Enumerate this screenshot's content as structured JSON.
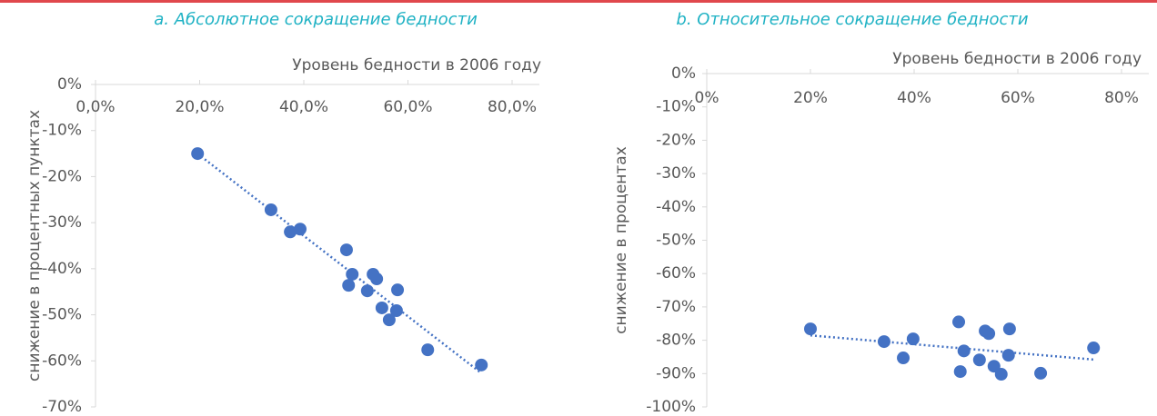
{
  "chart_data": [
    {
      "type": "scatter",
      "title": "a. Абсолютное сокращение бедности",
      "x_label": "Уровень бедности в 2006 году",
      "y_label": "снижение в процентных пунктах",
      "color": "#4472c4",
      "trendline": true,
      "x": [
        19.6,
        33.7,
        37.4,
        39.3,
        48.2,
        48.6,
        49.3,
        53.3,
        54.0,
        52.2,
        58.0,
        55.0,
        57.8,
        56.4,
        63.8,
        74.1
      ],
      "values": [
        -15.0,
        -27.2,
        -32.0,
        -31.4,
        -35.9,
        -43.6,
        -41.2,
        -41.2,
        -42.2,
        -44.8,
        -44.6,
        -48.5,
        -49.1,
        -51.1,
        -57.6,
        -60.9
      ],
      "xlim": [
        0,
        80
      ],
      "ylim": [
        -70,
        0
      ],
      "xticks": [
        {
          "value": 0,
          "label": "0,0%"
        },
        {
          "value": 20,
          "label": "20,0%"
        },
        {
          "value": 40,
          "label": "40,0%"
        },
        {
          "value": 60,
          "label": "60,0%"
        },
        {
          "value": 80,
          "label": "80,0%"
        }
      ],
      "yticks": [
        {
          "value": 0,
          "label": "0%"
        },
        {
          "value": -10,
          "label": "-10%"
        },
        {
          "value": -20,
          "label": "-20%"
        },
        {
          "value": -30,
          "label": "-30%"
        },
        {
          "value": -40,
          "label": "-40%"
        },
        {
          "value": -50,
          "label": "-50%"
        },
        {
          "value": -60,
          "label": "-60%"
        },
        {
          "value": -70,
          "label": "-70%"
        }
      ]
    },
    {
      "type": "scatter",
      "title": "b. Относительное сокращение бедности",
      "x_label": "Уровень бедности в 2006 году",
      "y_label": "снижение в процентах",
      "color": "#4472c4",
      "trendline": true,
      "x": [
        20.0,
        34.2,
        37.9,
        39.8,
        48.6,
        48.9,
        49.6,
        53.7,
        54.4,
        52.6,
        58.4,
        55.4,
        58.2,
        56.8,
        64.4,
        74.6
      ],
      "values": [
        -76.6,
        -80.4,
        -85.3,
        -79.6,
        -74.5,
        -89.4,
        -83.2,
        -77.2,
        -78.0,
        -85.9,
        -76.6,
        -87.8,
        -84.5,
        -90.2,
        -89.9,
        -82.3
      ],
      "xlim": [
        0,
        80
      ],
      "ylim": [
        -100,
        0
      ],
      "xticks": [
        {
          "value": 0,
          "label": "0%"
        },
        {
          "value": 20,
          "label": "20%"
        },
        {
          "value": 40,
          "label": "40%"
        },
        {
          "value": 60,
          "label": "60%"
        },
        {
          "value": 80,
          "label": "80%"
        }
      ],
      "yticks": [
        {
          "value": 0,
          "label": "0%"
        },
        {
          "value": -10,
          "label": "-10%"
        },
        {
          "value": -20,
          "label": "-20%"
        },
        {
          "value": -30,
          "label": "-30%"
        },
        {
          "value": -40,
          "label": "-40%"
        },
        {
          "value": -50,
          "label": "-50%"
        },
        {
          "value": -60,
          "label": "-60%"
        },
        {
          "value": -70,
          "label": "-70%"
        },
        {
          "value": -80,
          "label": "-80%"
        },
        {
          "value": -90,
          "label": "-90%"
        },
        {
          "value": -100,
          "label": "-100%"
        }
      ]
    }
  ]
}
